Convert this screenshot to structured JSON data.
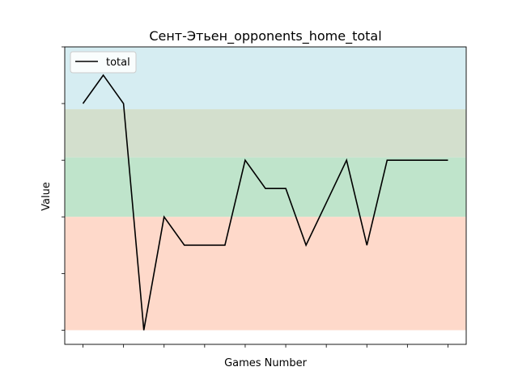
{
  "chart_data": {
    "type": "line",
    "title": "Сент-Этьен_opponents_home_total",
    "xlabel": "Games Number",
    "ylabel": "Value",
    "tick_labels_shown": false,
    "legend_placement": "top-left",
    "grid": false,
    "x": [
      1,
      2,
      3,
      4,
      5,
      6,
      7,
      8,
      9,
      10,
      11,
      12,
      13,
      14,
      15,
      16,
      17,
      18,
      19
    ],
    "ylim": [
      -0.25,
      5
    ],
    "series": [
      {
        "name": "total",
        "color": "#000000",
        "values": [
          4,
          4.5,
          4,
          0,
          2,
          1.5,
          1.5,
          1.5,
          3,
          2.5,
          2.5,
          1.5,
          2.25,
          3,
          1.5,
          3,
          3,
          3,
          3
        ]
      }
    ],
    "bands": [
      {
        "from": 3.9,
        "to": 5.0,
        "color": "#d6edf2"
      },
      {
        "from": 3.05,
        "to": 3.9,
        "color": "#d3dfcd"
      },
      {
        "from": 2.0,
        "to": 3.05,
        "color": "#bfe4cb"
      },
      {
        "from": 0.0,
        "to": 2.0,
        "color": "#fed9ca"
      }
    ]
  }
}
